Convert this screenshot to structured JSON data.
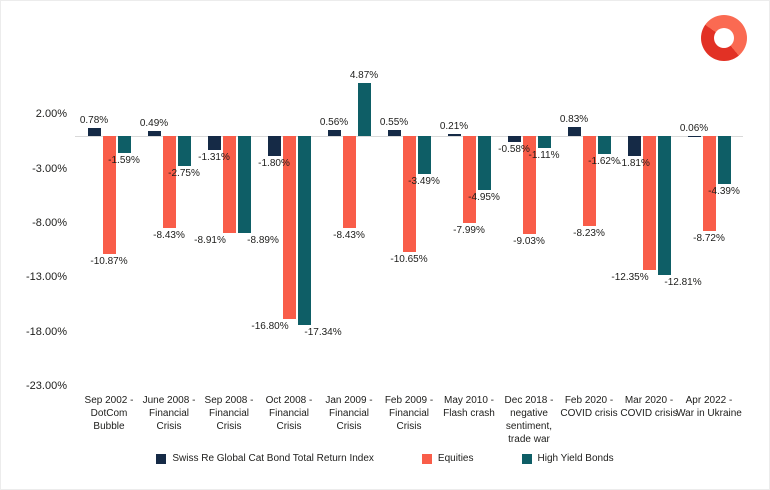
{
  "logo": {
    "name": "brand-ring-logo",
    "color_primary": "#e23125",
    "color_secondary": "#fa6a52"
  },
  "chart_data": {
    "type": "bar",
    "title": "",
    "xlabel": "",
    "ylabel": "",
    "categories": [
      "Sep 2002 - DotCom Bubble",
      "June 2008 - Financial Crisis",
      "Sep 2008 - Financial Crisis",
      "Oct 2008 - Financial Crisis",
      "Jan 2009 - Financial Crisis",
      "Feb 2009 - Financial Crisis",
      "May 2010 - Flash crash",
      "Dec 2018 - negative sentiment, trade war",
      "Feb 2020 - COVID crisis",
      "Mar 2020 - COVID crisis",
      "Apr 2022 - War in Ukraine"
    ],
    "series": [
      {
        "name": "Swiss Re Global Cat Bond Total Return Index",
        "color": "#152a46",
        "values": [
          0.78,
          0.49,
          -1.31,
          -1.8,
          0.56,
          0.55,
          0.21,
          -0.58,
          0.83,
          -1.81,
          0.06
        ]
      },
      {
        "name": "Equities",
        "color": "#f95d49",
        "values": [
          -10.87,
          -8.43,
          -8.91,
          -16.8,
          -8.43,
          -10.65,
          -7.99,
          -9.03,
          -8.23,
          -12.35,
          -8.72
        ]
      },
      {
        "name": "High Yield Bonds",
        "color": "#0e5e66",
        "values": [
          -1.59,
          -2.75,
          -8.89,
          -17.34,
          4.87,
          -3.49,
          -4.95,
          -1.11,
          -1.62,
          -12.81,
          -4.39
        ]
      }
    ],
    "y_ticks": [
      "2.00%",
      "-3.00%",
      "-8.00%",
      "-13.00%",
      "-18.00%",
      "-23.00%"
    ],
    "y_tick_values": [
      2,
      -3,
      -8,
      -13,
      -18,
      -23
    ],
    "ylim": [
      -23,
      6
    ],
    "value_label_format": "0.00%",
    "grid": false,
    "legend_position": "bottom"
  }
}
